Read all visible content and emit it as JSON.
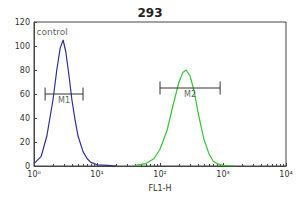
{
  "chart_data": {
    "type": "line",
    "title": "293",
    "xlabel": "FL1-H",
    "log": "x",
    "xlim": [
      1,
      10000
    ],
    "xticks": [
      {
        "value": 1,
        "label": "10⁰"
      },
      {
        "value": 10,
        "label": "10¹"
      },
      {
        "value": 100,
        "label": "10²"
      },
      {
        "value": 1000,
        "label": "10³"
      },
      {
        "value": 10000,
        "label": "10⁴"
      }
    ],
    "ylim": [
      0,
      120
    ],
    "yticks": [
      0,
      20,
      40,
      60,
      80,
      100,
      120
    ],
    "grid": false,
    "series": [
      {
        "name": "control",
        "color": "#2e2e9a",
        "x": [
          1,
          1.3,
          1.6,
          2,
          2.3,
          2.6,
          2.9,
          3.2,
          3.6,
          4,
          4.5,
          5,
          6,
          7,
          8,
          10,
          15,
          20
        ],
        "values": [
          2,
          8,
          25,
          55,
          80,
          98,
          105,
          95,
          75,
          55,
          38,
          25,
          12,
          6,
          3,
          1,
          0.5,
          0
        ]
      },
      {
        "color": "#33c633",
        "x": [
          40,
          60,
          80,
          100,
          130,
          160,
          200,
          230,
          260,
          300,
          350,
          400,
          500,
          600,
          700,
          800,
          1000,
          1500
        ],
        "values": [
          0.5,
          2,
          6,
          14,
          30,
          50,
          70,
          78,
          80,
          75,
          62,
          45,
          22,
          10,
          4,
          2,
          0.5,
          0
        ]
      }
    ],
    "annotations": [
      {
        "text": "control",
        "x": 1.1,
        "y": 112
      }
    ],
    "gates": [
      {
        "label": "M1",
        "x": [
          1.5,
          6
        ],
        "y": 60
      },
      {
        "label": "M2",
        "x": [
          100,
          900
        ],
        "y": 65
      }
    ]
  }
}
